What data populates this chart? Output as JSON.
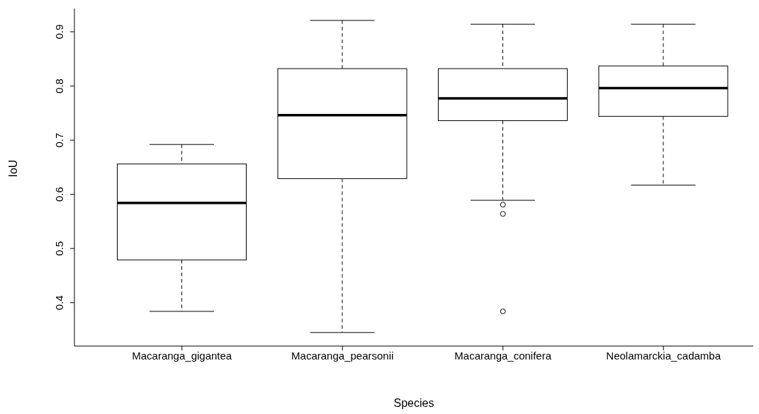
{
  "chart_data": {
    "type": "box",
    "xlabel": "Species",
    "ylabel": "IoU",
    "categories": [
      "Macaranga_gigantea",
      "Macaranga_pearsonii",
      "Macaranga_conifera",
      "Neolamarckia_cadamba"
    ],
    "boxes": [
      {
        "low": 0.384,
        "q1": 0.479,
        "median": 0.584,
        "q3": 0.656,
        "high": 0.692
      },
      {
        "low": 0.345,
        "q1": 0.629,
        "median": 0.746,
        "q3": 0.832,
        "high": 0.921
      },
      {
        "low": 0.589,
        "q1": 0.736,
        "median": 0.777,
        "q3": 0.832,
        "high": 0.914,
        "outliers": [
          0.581,
          0.564,
          0.384
        ]
      },
      {
        "low": 0.617,
        "q1": 0.744,
        "median": 0.796,
        "q3": 0.837,
        "high": 0.914
      }
    ],
    "ylim": [
      0.32,
      0.943
    ],
    "yticks": [
      0.4,
      0.5,
      0.6,
      0.7,
      0.8,
      0.9
    ]
  }
}
